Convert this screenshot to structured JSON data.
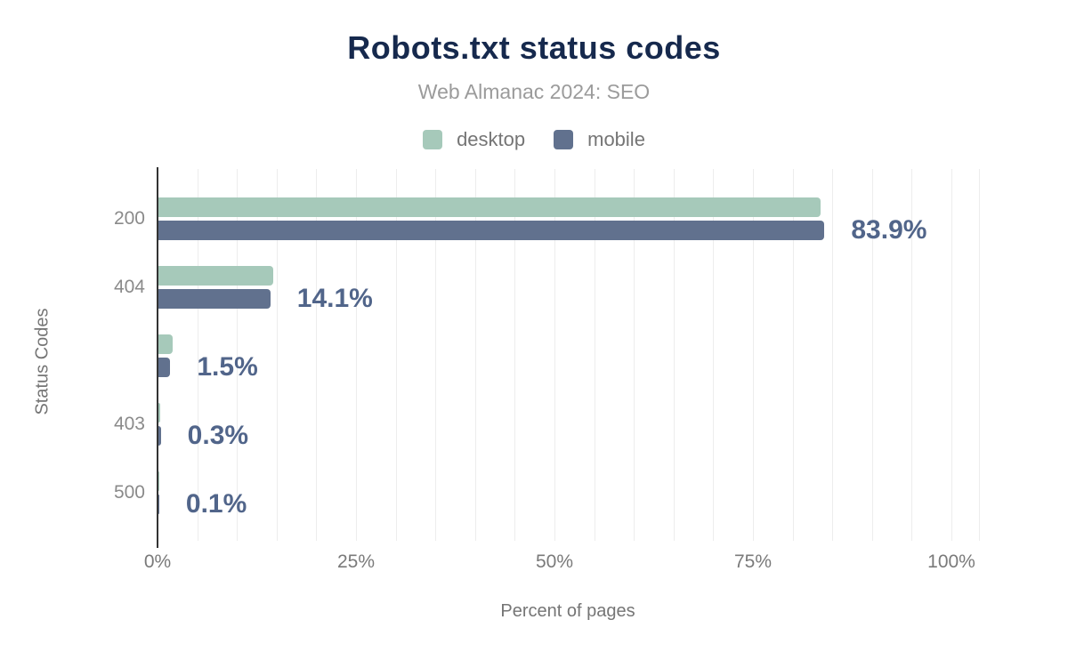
{
  "chart_data": {
    "type": "bar",
    "orientation": "horizontal",
    "title": "Robots.txt status codes",
    "subtitle": "Web Almanac 2024: SEO",
    "categories": [
      "200",
      "404",
      "",
      "403",
      "500"
    ],
    "series": [
      {
        "name": "desktop",
        "color": "#a6c9ba",
        "values": [
          83.4,
          14.5,
          1.8,
          0.2,
          0.1
        ]
      },
      {
        "name": "mobile",
        "color": "#61718e",
        "values": [
          83.9,
          14.1,
          1.5,
          0.3,
          0.1
        ]
      }
    ],
    "data_labels": [
      "83.9%",
      "14.1%",
      "1.5%",
      "0.3%",
      "0.1%"
    ],
    "xlabel": "Percent of pages",
    "ylabel": "Status Codes",
    "xlim": [
      0,
      103.5
    ],
    "x_tick_values": [
      0,
      25,
      50,
      75,
      100
    ],
    "x_tick_labels": [
      "0%",
      "25%",
      "50%",
      "75%",
      "100%"
    ],
    "gridline_step_pct": 5,
    "grid_on": true,
    "legend_position": "top",
    "bar_value_label_series": "mobile"
  },
  "style": {
    "title_color": "#16294d",
    "subtitle_color": "#9b9b9b",
    "legend_text_color": "#757575",
    "value_label_color": "#51658a",
    "category_label_color": "#8a8a8a",
    "tick_label_color": "#7a7a7a",
    "axis_title_color": "#757575",
    "gridline_color": "#ededed",
    "axis_line_color": "#333333",
    "background_color": "#ffffff"
  }
}
